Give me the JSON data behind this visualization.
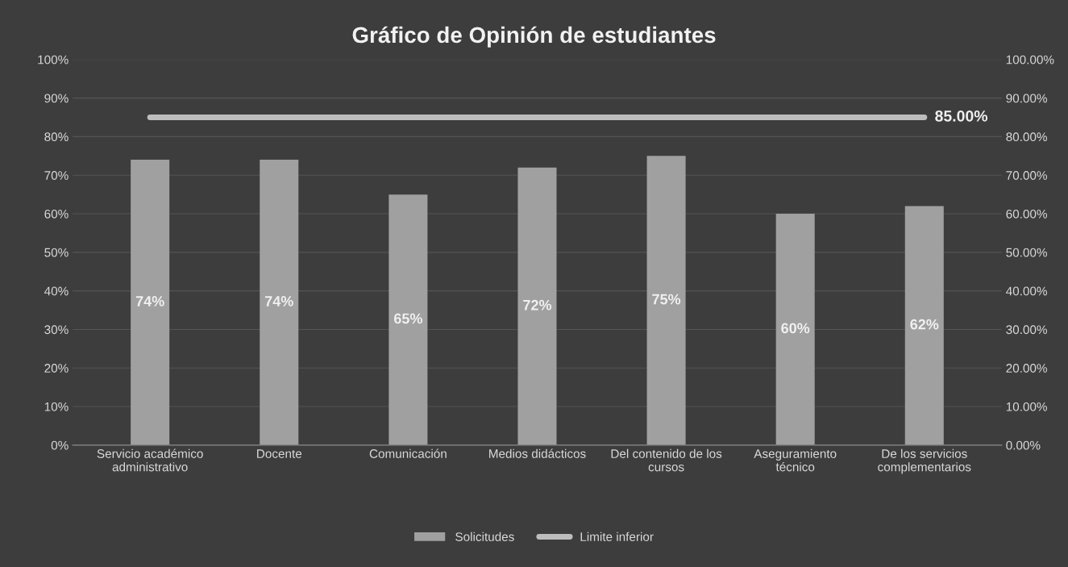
{
  "chart_data": {
    "type": "bar",
    "title": "Gráfico de Opinión de estudiantes",
    "categories": [
      "Servicio académico\nadministrativo",
      "Docente",
      "Comunicación",
      "Medios didácticos",
      "Del contenido de los\ncursos",
      "Aseguramiento\ntécnico",
      "De los servicios\ncomplementarios"
    ],
    "series": [
      {
        "name": "Solicitudes",
        "color": "#a0a0a0",
        "values": [
          74,
          74,
          65,
          72,
          75,
          60,
          62
        ],
        "value_labels": [
          "74%",
          "74%",
          "65%",
          "72%",
          "75%",
          "60%",
          "62%"
        ]
      },
      {
        "name": "Limite inferior",
        "type": "line",
        "axis": "y2",
        "color": "#bdbdbd",
        "values": [
          85,
          85,
          85,
          85,
          85,
          85,
          85
        ],
        "value_labels": [
          null,
          null,
          null,
          null,
          null,
          null,
          "85.00%"
        ]
      }
    ],
    "ylim": [
      0,
      100
    ],
    "yticks": [
      {
        "value": 0,
        "label": "0%"
      },
      {
        "value": 10,
        "label": "10%"
      },
      {
        "value": 20,
        "label": "20%"
      },
      {
        "value": 30,
        "label": "30%"
      },
      {
        "value": 40,
        "label": "40%"
      },
      {
        "value": 50,
        "label": "50%"
      },
      {
        "value": 60,
        "label": "60%"
      },
      {
        "value": 70,
        "label": "70%"
      },
      {
        "value": 80,
        "label": "80%"
      },
      {
        "value": 90,
        "label": "90%"
      },
      {
        "value": 100,
        "label": "100%"
      }
    ],
    "y2lim": [
      0,
      100
    ],
    "y2ticks": [
      {
        "value": 0,
        "label": "0.00%"
      },
      {
        "value": 10,
        "label": "10.00%"
      },
      {
        "value": 20,
        "label": "20.00%"
      },
      {
        "value": 30,
        "label": "30.00%"
      },
      {
        "value": 40,
        "label": "40.00%"
      },
      {
        "value": 50,
        "label": "50.00%"
      },
      {
        "value": 60,
        "label": "60.00%"
      },
      {
        "value": 70,
        "label": "70.00%"
      },
      {
        "value": 80,
        "label": "80.00%"
      },
      {
        "value": 90,
        "label": "90.00%"
      },
      {
        "value": 100,
        "label": "100.00%"
      }
    ],
    "grid": "y",
    "legend": "bottom",
    "marker": "none",
    "line_style": "solid"
  }
}
